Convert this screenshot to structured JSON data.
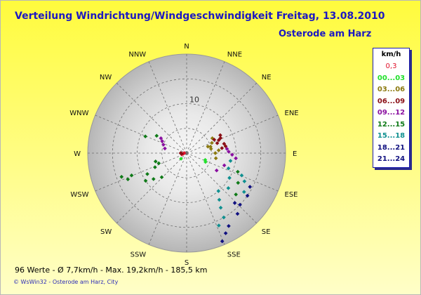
{
  "header": {
    "title": "Verteilung Windrichtung/Windgeschwindigkeit  Freitag, 13.08.2010",
    "location": "Osterode am Harz"
  },
  "footer": {
    "stats": "96 Werte   -   Ø 7,7km/h   -   Max. 19,2km/h   -   185,5 km",
    "credit_app": "© WsWin32",
    "credit_sep": "-",
    "credit_place": "Osterode am Harz, City"
  },
  "legend": {
    "title": "km/h",
    "items": [
      {
        "label": "0,3",
        "color": "#e0102a"
      },
      {
        "label": "00...03",
        "color": "#22e02c"
      },
      {
        "label": "03...06",
        "color": "#8c7a10"
      },
      {
        "label": "06...09",
        "color": "#8a0f16"
      },
      {
        "label": "09...12",
        "color": "#8a0fa0"
      },
      {
        "label": "12...15",
        "color": "#0f7a18"
      },
      {
        "label": "15...18",
        "color": "#0f9090"
      },
      {
        "label": "18...21",
        "color": "#101080"
      },
      {
        "label": "21...24",
        "color": "#101080"
      }
    ]
  },
  "chart_data": {
    "type": "scatter",
    "subtype": "polar",
    "title": "Verteilung Windrichtung/Windgeschwindigkeit  Freitag, 13.08.2010",
    "radial_unit": "km/h",
    "radial_range": [
      0,
      20
    ],
    "radial_tick_label": "10",
    "directions": [
      "N",
      "NNE",
      "NE",
      "ENE",
      "E",
      "ESE",
      "SE",
      "SSE",
      "S",
      "SSW",
      "SW",
      "WSW",
      "W",
      "WNW",
      "NW",
      "NNW"
    ],
    "count": 96,
    "average": "7,7km/h",
    "max": "19,2km/h",
    "distance": "185,5 km",
    "series": [
      {
        "name": "0,3",
        "color": "#e0102a",
        "points": [
          [
            270,
            0.5
          ],
          [
            260,
            0.7
          ],
          [
            255,
            1.0
          ]
        ]
      },
      {
        "name": "00...03",
        "color": "#22e02c",
        "points": [
          [
            225,
            1.6
          ],
          [
            110,
            4.0
          ],
          [
            115,
            4.2
          ]
        ]
      },
      {
        "name": "03...06",
        "color": "#8c7a10",
        "points": [
          [
            75,
            5.0
          ],
          [
            80,
            5.0
          ],
          [
            68,
            5.5
          ],
          [
            60,
            6.0
          ],
          [
            85,
            6.5
          ],
          [
            100,
            6.0
          ],
          [
            90,
            5.8
          ],
          [
            73,
            4.5
          ]
        ]
      },
      {
        "name": "06...09",
        "color": "#8a0f16",
        "points": [
          [
            64,
            6.2
          ],
          [
            72,
            6.5
          ],
          [
            68,
            7.0
          ],
          [
            66,
            7.5
          ],
          [
            62,
            7.7
          ],
          [
            76,
            7.8
          ],
          [
            80,
            8.0
          ],
          [
            82,
            7.2
          ],
          [
            270,
            1.2
          ],
          [
            265,
            1.0
          ]
        ]
      },
      {
        "name": "09...12",
        "color": "#8a0fa0",
        "points": [
          [
            296,
            5.5
          ],
          [
            290,
            5.0
          ],
          [
            300,
            6.0
          ],
          [
            282,
            4.5
          ],
          [
            84,
            8.2
          ],
          [
            92,
            9.2
          ],
          [
            96,
            10.0
          ],
          [
            88,
            8.5
          ],
          [
            108,
            8.0
          ],
          [
            120,
            7.0
          ]
        ]
      },
      {
        "name": "12...15",
        "color": "#0f7a18",
        "points": [
          [
            242,
            9.0
          ],
          [
            236,
            10.0
          ],
          [
            246,
            7.0
          ],
          [
            250,
            6.0
          ],
          [
            255,
            6.5
          ],
          [
            248,
            12.0
          ],
          [
            246,
            13.0
          ],
          [
            250,
            14.0
          ],
          [
            232,
            8.5
          ],
          [
            226,
            7.0
          ],
          [
            300,
            7.0
          ],
          [
            292,
            9.0
          ],
          [
            110,
            11.0
          ],
          [
            120,
            12.0
          ],
          [
            130,
            13.0
          ]
        ]
      },
      {
        "name": "15...18",
        "color": "#0f9090",
        "points": [
          [
            140,
            10.0
          ],
          [
            145,
            11.5
          ],
          [
            148,
            13.0
          ],
          [
            120,
            10.0
          ],
          [
            130,
            11.0
          ],
          [
            112,
            12.0
          ],
          [
            116,
            13.0
          ],
          [
            124,
            14.0
          ],
          [
            150,
            15.0
          ],
          [
            156,
            16.0
          ],
          [
            110,
            9.0
          ],
          [
            100,
            9.0
          ]
        ]
      },
      {
        "name": "18...21",
        "color": "#101080",
        "points": [
          [
            136,
            14.0
          ],
          [
            134,
            15.0
          ],
          [
            150,
            17.0
          ],
          [
            154,
            18.0
          ],
          [
            158,
            19.2
          ],
          [
            140,
            16.0
          ],
          [
            125,
            15.0
          ],
          [
            118,
            14.5
          ]
        ]
      }
    ]
  }
}
